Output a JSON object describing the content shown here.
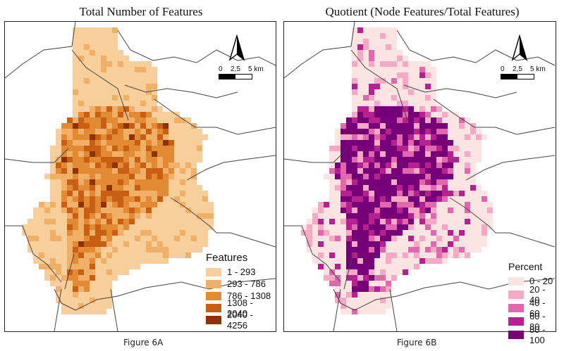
{
  "figures": [
    {
      "id": "6A",
      "title": "Total Number of Features",
      "caption": "Figure 6A",
      "legend": {
        "title": "Features",
        "classes": [
          {
            "label": "1 - 293",
            "color": "#f8cf9b"
          },
          {
            "label": "293 - 786",
            "color": "#f0b067"
          },
          {
            "label": "786 - 1308",
            "color": "#e38a34"
          },
          {
            "label": "1308 - 2040",
            "color": "#c85f12"
          },
          {
            "label": "2040 - 4256",
            "color": "#8e3206"
          }
        ]
      },
      "scalebar": {
        "ticks": [
          "0",
          "2,5",
          "5 km"
        ]
      }
    },
    {
      "id": "6B",
      "title": "Quotient (Node Features/Total Features)",
      "caption": "Figure 6B",
      "legend": {
        "title": "Percent",
        "classes": [
          {
            "label": "0 - 20",
            "color": "#fbe4e1"
          },
          {
            "label": "20 - 40",
            "color": "#f6a9c4"
          },
          {
            "label": "40 - 60",
            "color": "#e268ae"
          },
          {
            "label": "60 - 80",
            "color": "#b7208f"
          },
          {
            "label": "80 - 100",
            "color": "#750078"
          }
        ]
      },
      "scalebar": {
        "ticks": [
          "0",
          "2,5",
          "5 km"
        ]
      }
    }
  ]
}
